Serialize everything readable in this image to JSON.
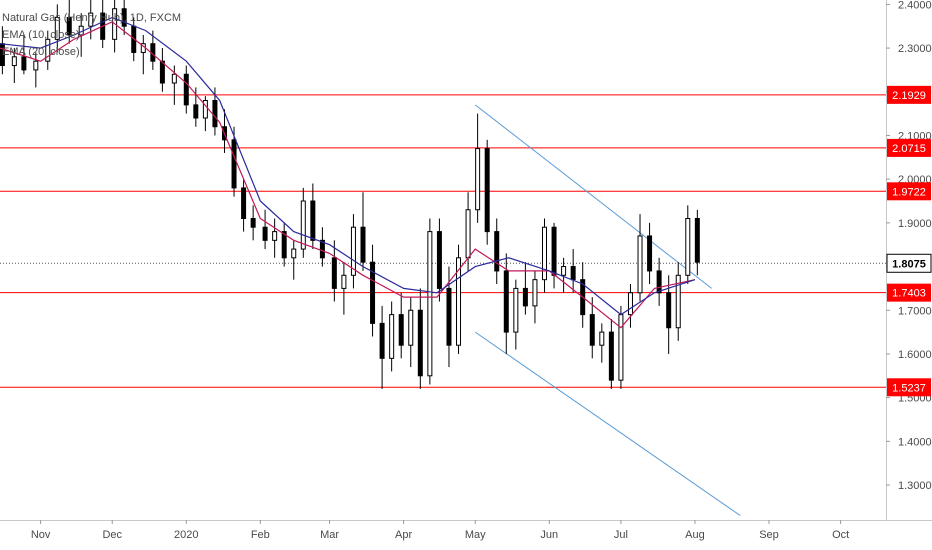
{
  "legend": {
    "title": "Natural Gas (Henry Hub), 1D, FXCM",
    "ema1": "EMA (10, close)",
    "ema2": "EMA (20, close)"
  },
  "colors": {
    "candle_up": "#ffffff",
    "candle_down": "#000000",
    "candle_outline": "#000000",
    "ema_fast": "#c2185b",
    "ema_slow": "#2a2a9c",
    "level_line": "#ff0000",
    "channel_line": "#5b9bd5",
    "axis_text": "#4a4a4a"
  },
  "chart_data": {
    "type": "candlestick",
    "ylim": [
      1.22,
      2.41
    ],
    "grid": false,
    "y_ticks": [
      "2.4000",
      "2.3000",
      "2.2000",
      "2.1000",
      "2.0000",
      "1.9000",
      "1.8000",
      "1.7000",
      "1.6000",
      "1.5000",
      "1.4000",
      "1.3000"
    ],
    "x_ticks": [
      "Nov",
      "Dec",
      "2020",
      "Feb",
      "Mar",
      "Apr",
      "May",
      "Jun",
      "Jul",
      "Aug",
      "Sep",
      "Oct"
    ],
    "x_tick_dates": [
      "2019-11-01",
      "2019-12-01",
      "2020-01-01",
      "2020-02-01",
      "2020-03-01",
      "2020-04-01",
      "2020-05-01",
      "2020-06-01",
      "2020-07-01",
      "2020-08-01",
      "2020-09-01",
      "2020-10-01"
    ],
    "x_range": [
      "2019-10-15",
      "2020-10-20"
    ],
    "levels": [
      {
        "value": 2.1929,
        "label": "2.1929"
      },
      {
        "value": 2.0715,
        "label": "2.0715"
      },
      {
        "value": 1.9722,
        "label": "1.9722"
      },
      {
        "value": 1.7403,
        "label": "1.7403"
      },
      {
        "value": 1.5237,
        "label": "1.5237"
      }
    ],
    "last_price": {
      "value": 1.8075,
      "label": "1.8075"
    },
    "channel": [
      {
        "from": {
          "date": "2020-05-01",
          "value": 2.17
        },
        "to": {
          "date": "2020-08-08",
          "value": 1.75
        }
      },
      {
        "from": {
          "date": "2020-05-01",
          "value": 1.65
        },
        "to": {
          "date": "2020-08-20",
          "value": 1.23
        }
      }
    ],
    "series": [
      {
        "name": "EMA (10, close)",
        "points": [
          [
            "2019-10-15",
            2.3
          ],
          [
            "2019-11-01",
            2.27
          ],
          [
            "2019-11-15",
            2.32
          ],
          [
            "2019-12-01",
            2.36
          ],
          [
            "2019-12-15",
            2.3
          ],
          [
            "2020-01-01",
            2.22
          ],
          [
            "2020-01-15",
            2.13
          ],
          [
            "2020-02-01",
            1.91
          ],
          [
            "2020-02-15",
            1.86
          ],
          [
            "2020-03-01",
            1.83
          ],
          [
            "2020-03-15",
            1.78
          ],
          [
            "2020-04-01",
            1.73
          ],
          [
            "2020-04-15",
            1.73
          ],
          [
            "2020-05-01",
            1.84
          ],
          [
            "2020-05-15",
            1.79
          ],
          [
            "2020-06-01",
            1.79
          ],
          [
            "2020-06-15",
            1.73
          ],
          [
            "2020-07-01",
            1.66
          ],
          [
            "2020-07-15",
            1.75
          ],
          [
            "2020-08-01",
            1.77
          ]
        ]
      },
      {
        "name": "EMA (20, close)",
        "points": [
          [
            "2019-10-15",
            2.31
          ],
          [
            "2019-11-01",
            2.3
          ],
          [
            "2019-11-15",
            2.33
          ],
          [
            "2019-12-01",
            2.37
          ],
          [
            "2019-12-15",
            2.34
          ],
          [
            "2020-01-01",
            2.27
          ],
          [
            "2020-01-15",
            2.18
          ],
          [
            "2020-02-01",
            1.95
          ],
          [
            "2020-02-15",
            1.88
          ],
          [
            "2020-03-01",
            1.85
          ],
          [
            "2020-03-15",
            1.8
          ],
          [
            "2020-04-01",
            1.75
          ],
          [
            "2020-04-15",
            1.74
          ],
          [
            "2020-05-01",
            1.8
          ],
          [
            "2020-05-15",
            1.82
          ],
          [
            "2020-06-01",
            1.79
          ],
          [
            "2020-06-15",
            1.76
          ],
          [
            "2020-07-01",
            1.69
          ],
          [
            "2020-07-15",
            1.74
          ],
          [
            "2020-08-01",
            1.77
          ]
        ]
      }
    ],
    "candles": [
      [
        "2019-10-16",
        2.31,
        2.35,
        2.24,
        2.26
      ],
      [
        "2019-10-21",
        2.26,
        2.3,
        2.22,
        2.28
      ],
      [
        "2019-10-25",
        2.28,
        2.33,
        2.24,
        2.25
      ],
      [
        "2019-10-30",
        2.25,
        2.29,
        2.21,
        2.27
      ],
      [
        "2019-11-04",
        2.27,
        2.34,
        2.25,
        2.32
      ],
      [
        "2019-11-08",
        2.32,
        2.4,
        2.29,
        2.37
      ],
      [
        "2019-11-13",
        2.37,
        2.41,
        2.31,
        2.33
      ],
      [
        "2019-11-18",
        2.33,
        2.38,
        2.28,
        2.35
      ],
      [
        "2019-11-22",
        2.35,
        2.41,
        2.32,
        2.38
      ],
      [
        "2019-11-27",
        2.38,
        2.41,
        2.3,
        2.32
      ],
      [
        "2019-12-02",
        2.32,
        2.41,
        2.29,
        2.39
      ],
      [
        "2019-12-06",
        2.39,
        2.41,
        2.33,
        2.35
      ],
      [
        "2019-12-10",
        2.35,
        2.37,
        2.27,
        2.29
      ],
      [
        "2019-12-14",
        2.29,
        2.33,
        2.24,
        2.31
      ],
      [
        "2019-12-18",
        2.31,
        2.34,
        2.25,
        2.27
      ],
      [
        "2019-12-22",
        2.27,
        2.3,
        2.2,
        2.22
      ],
      [
        "2019-12-27",
        2.22,
        2.26,
        2.17,
        2.24
      ],
      [
        "2020-01-01",
        2.24,
        2.26,
        2.15,
        2.17
      ],
      [
        "2020-01-05",
        2.17,
        2.21,
        2.12,
        2.14
      ],
      [
        "2020-01-09",
        2.14,
        2.19,
        2.11,
        2.18
      ],
      [
        "2020-01-13",
        2.18,
        2.21,
        2.1,
        2.12
      ],
      [
        "2020-01-17",
        2.12,
        2.16,
        2.06,
        2.09
      ],
      [
        "2020-01-21",
        2.09,
        2.12,
        1.96,
        1.98
      ],
      [
        "2020-01-25",
        1.98,
        2.0,
        1.88,
        1.91
      ],
      [
        "2020-01-29",
        1.91,
        1.94,
        1.86,
        1.89
      ],
      [
        "2020-02-03",
        1.89,
        1.93,
        1.84,
        1.86
      ],
      [
        "2020-02-07",
        1.86,
        1.91,
        1.82,
        1.88
      ],
      [
        "2020-02-11",
        1.88,
        1.9,
        1.8,
        1.82
      ],
      [
        "2020-02-15",
        1.82,
        1.86,
        1.77,
        1.84
      ],
      [
        "2020-02-19",
        1.84,
        1.98,
        1.82,
        1.95
      ],
      [
        "2020-02-23",
        1.95,
        1.99,
        1.84,
        1.86
      ],
      [
        "2020-02-27",
        1.86,
        1.89,
        1.8,
        1.82
      ],
      [
        "2020-03-03",
        1.82,
        1.86,
        1.72,
        1.75
      ],
      [
        "2020-03-07",
        1.75,
        1.81,
        1.69,
        1.78
      ],
      [
        "2020-03-11",
        1.78,
        1.92,
        1.75,
        1.89
      ],
      [
        "2020-03-15",
        1.89,
        1.97,
        1.79,
        1.81
      ],
      [
        "2020-03-19",
        1.81,
        1.85,
        1.64,
        1.67
      ],
      [
        "2020-03-23",
        1.67,
        1.71,
        1.52,
        1.59
      ],
      [
        "2020-03-27",
        1.59,
        1.72,
        1.56,
        1.69
      ],
      [
        "2020-03-31",
        1.69,
        1.74,
        1.59,
        1.62
      ],
      [
        "2020-04-04",
        1.62,
        1.73,
        1.57,
        1.7
      ],
      [
        "2020-04-08",
        1.7,
        1.75,
        1.52,
        1.55
      ],
      [
        "2020-04-12",
        1.55,
        1.91,
        1.53,
        1.88
      ],
      [
        "2020-04-16",
        1.88,
        1.91,
        1.72,
        1.75
      ],
      [
        "2020-04-20",
        1.75,
        1.8,
        1.57,
        1.62
      ],
      [
        "2020-04-24",
        1.62,
        1.85,
        1.6,
        1.82
      ],
      [
        "2020-04-28",
        1.82,
        1.97,
        1.79,
        1.93
      ],
      [
        "2020-05-02",
        1.93,
        2.15,
        1.9,
        2.07
      ],
      [
        "2020-05-06",
        2.07,
        2.09,
        1.85,
        1.88
      ],
      [
        "2020-05-10",
        1.88,
        1.91,
        1.76,
        1.79
      ],
      [
        "2020-05-14",
        1.79,
        1.83,
        1.6,
        1.65
      ],
      [
        "2020-05-18",
        1.65,
        1.77,
        1.61,
        1.75
      ],
      [
        "2020-05-22",
        1.75,
        1.81,
        1.69,
        1.71
      ],
      [
        "2020-05-26",
        1.71,
        1.79,
        1.67,
        1.77
      ],
      [
        "2020-05-30",
        1.77,
        1.91,
        1.74,
        1.89
      ],
      [
        "2020-06-03",
        1.89,
        1.9,
        1.75,
        1.78
      ],
      [
        "2020-06-07",
        1.78,
        1.82,
        1.74,
        1.8
      ],
      [
        "2020-06-11",
        1.8,
        1.84,
        1.74,
        1.77
      ],
      [
        "2020-06-15",
        1.77,
        1.81,
        1.66,
        1.69
      ],
      [
        "2020-06-19",
        1.69,
        1.73,
        1.59,
        1.62
      ],
      [
        "2020-06-23",
        1.62,
        1.67,
        1.58,
        1.65
      ],
      [
        "2020-06-27",
        1.65,
        1.68,
        1.52,
        1.54
      ],
      [
        "2020-07-01",
        1.54,
        1.71,
        1.52,
        1.69
      ],
      [
        "2020-07-05",
        1.69,
        1.76,
        1.66,
        1.74
      ],
      [
        "2020-07-09",
        1.74,
        1.92,
        1.72,
        1.87
      ],
      [
        "2020-07-13",
        1.87,
        1.9,
        1.76,
        1.79
      ],
      [
        "2020-07-17",
        1.79,
        1.82,
        1.71,
        1.74
      ],
      [
        "2020-07-21",
        1.74,
        1.78,
        1.6,
        1.66
      ],
      [
        "2020-07-25",
        1.66,
        1.81,
        1.63,
        1.78
      ],
      [
        "2020-07-29",
        1.78,
        1.94,
        1.76,
        1.91
      ],
      [
        "2020-08-02",
        1.91,
        1.93,
        1.78,
        1.81
      ]
    ]
  }
}
